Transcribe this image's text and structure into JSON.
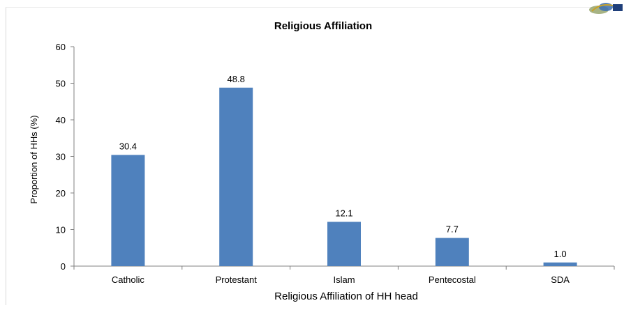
{
  "chart_data": {
    "type": "bar",
    "title": "Religious Affiliation",
    "xlabel": "Religious Affiliation of HH head",
    "ylabel": "Proportion of HHs (%)",
    "categories": [
      "Catholic",
      "Protestant",
      "Islam",
      "Pentecostal",
      "SDA"
    ],
    "values": [
      30.4,
      48.8,
      12.1,
      7.7,
      1.0
    ],
    "value_labels": [
      "30.4",
      "48.8",
      "12.1",
      "7.7",
      "1.0"
    ],
    "ylim": [
      0,
      60
    ],
    "yticks": [
      0,
      10,
      20,
      30,
      40,
      50,
      60
    ],
    "grid": false,
    "legend": "none",
    "bar_color": "#4F81BD"
  },
  "colors": {
    "bar": "#4F81BD",
    "axis": "#808080",
    "text": "#000000"
  },
  "decorations": {
    "logo_icon": "institution-logo-icon"
  }
}
